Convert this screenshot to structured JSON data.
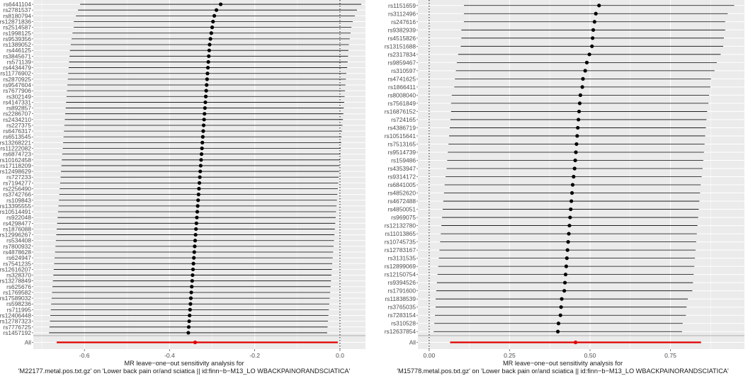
{
  "chart_data": [
    {
      "type": "forest",
      "subtitle_line1": "MR leave−one−out sensitivity analysis for",
      "subtitle_line2": "'M22177.metal.pos.txt.gz' on 'Lower back pain or/and sciatica || id:finn−b−M13_LO WBACKPAINORANDSCIATICA'",
      "xlim": [
        -0.72,
        0.06
      ],
      "xticks": [
        -0.6,
        -0.4,
        -0.2,
        0.0
      ],
      "xtick_labels": [
        "-0.6",
        "-0.4",
        "-0.2",
        "0.0"
      ],
      "ref_line": 0,
      "colors": {
        "panel_bg": "#ebebeb",
        "grid": "#ffffff",
        "point": "#000000",
        "all": "#e00000"
      },
      "all": {
        "label": "All",
        "b": -0.34,
        "lo": -0.665,
        "hi": -0.005
      },
      "snps": [
        {
          "label": "rs6441104",
          "b": -0.28,
          "lo": -0.61,
          "hi": 0.05
        },
        {
          "label": "rs2781537",
          "b": -0.29,
          "lo": -0.615,
          "hi": 0.04
        },
        {
          "label": "rs8180794",
          "b": -0.295,
          "lo": -0.62,
          "hi": 0.035
        },
        {
          "label": "rs12871836",
          "b": -0.298,
          "lo": -0.625,
          "hi": 0.03
        },
        {
          "label": "rs2514587",
          "b": -0.3,
          "lo": -0.625,
          "hi": 0.027
        },
        {
          "label": "rs1998125",
          "b": -0.302,
          "lo": -0.628,
          "hi": 0.025
        },
        {
          "label": "rs9539356",
          "b": -0.304,
          "lo": -0.63,
          "hi": 0.023
        },
        {
          "label": "rs1389052",
          "b": -0.306,
          "lo": -0.632,
          "hi": 0.021
        },
        {
          "label": "rs446125",
          "b": -0.307,
          "lo": -0.634,
          "hi": 0.02
        },
        {
          "label": "rs3845671",
          "b": -0.308,
          "lo": -0.635,
          "hi": 0.019
        },
        {
          "label": "rs571139",
          "b": -0.309,
          "lo": -0.636,
          "hi": 0.018
        },
        {
          "label": "rs4434479",
          "b": -0.31,
          "lo": -0.637,
          "hi": 0.017
        },
        {
          "label": "rs11776902",
          "b": -0.311,
          "lo": -0.638,
          "hi": 0.015
        },
        {
          "label": "rs2870925",
          "b": -0.312,
          "lo": -0.639,
          "hi": 0.014
        },
        {
          "label": "rs9547604",
          "b": -0.313,
          "lo": -0.64,
          "hi": 0.013
        },
        {
          "label": "rs7677906",
          "b": -0.314,
          "lo": -0.641,
          "hi": 0.012
        },
        {
          "label": "rs302149",
          "b": -0.315,
          "lo": -0.642,
          "hi": 0.011
        },
        {
          "label": "rs4147331",
          "b": -0.316,
          "lo": -0.643,
          "hi": 0.01
        },
        {
          "label": "rs892857",
          "b": -0.317,
          "lo": -0.644,
          "hi": 0.009
        },
        {
          "label": "rs2286707",
          "b": -0.318,
          "lo": -0.645,
          "hi": 0.008
        },
        {
          "label": "rs2434210",
          "b": -0.319,
          "lo": -0.646,
          "hi": 0.007
        },
        {
          "label": "rs227375",
          "b": -0.32,
          "lo": -0.647,
          "hi": 0.006
        },
        {
          "label": "rs6476317",
          "b": -0.321,
          "lo": -0.648,
          "hi": 0.005
        },
        {
          "label": "rs6513545",
          "b": -0.322,
          "lo": -0.649,
          "hi": 0.004
        },
        {
          "label": "rs13268221",
          "b": -0.323,
          "lo": -0.65,
          "hi": 0.003
        },
        {
          "label": "rs11222082",
          "b": -0.324,
          "lo": -0.651,
          "hi": 0.002
        },
        {
          "label": "rs6874723",
          "b": -0.325,
          "lo": -0.652,
          "hi": 0.001
        },
        {
          "label": "rs10162458",
          "b": -0.326,
          "lo": -0.653,
          "hi": 0.0
        },
        {
          "label": "rs17118209",
          "b": -0.327,
          "lo": -0.654,
          "hi": -0.001
        },
        {
          "label": "rs12498629",
          "b": -0.328,
          "lo": -0.655,
          "hi": -0.002
        },
        {
          "label": "rs727233",
          "b": -0.329,
          "lo": -0.656,
          "hi": -0.003
        },
        {
          "label": "rs7194277",
          "b": -0.33,
          "lo": -0.657,
          "hi": -0.004
        },
        {
          "label": "rs2256490",
          "b": -0.331,
          "lo": -0.658,
          "hi": -0.005
        },
        {
          "label": "rs3742766",
          "b": -0.332,
          "lo": -0.659,
          "hi": -0.006
        },
        {
          "label": "rs109843",
          "b": -0.333,
          "lo": -0.66,
          "hi": -0.007
        },
        {
          "label": "rs13395555",
          "b": -0.334,
          "lo": -0.661,
          "hi": -0.008
        },
        {
          "label": "rs10514491",
          "b": -0.335,
          "lo": -0.662,
          "hi": -0.009
        },
        {
          "label": "rs922048",
          "b": -0.336,
          "lo": -0.663,
          "hi": -0.01
        },
        {
          "label": "rs4298477",
          "b": -0.337,
          "lo": -0.664,
          "hi": -0.011
        },
        {
          "label": "rs1876088",
          "b": -0.338,
          "lo": -0.665,
          "hi": -0.012
        },
        {
          "label": "rs12996267",
          "b": -0.339,
          "lo": -0.666,
          "hi": -0.013
        },
        {
          "label": "rs534408",
          "b": -0.34,
          "lo": -0.667,
          "hi": -0.014
        },
        {
          "label": "rs7800932",
          "b": -0.341,
          "lo": -0.668,
          "hi": -0.015
        },
        {
          "label": "rs4878628",
          "b": -0.342,
          "lo": -0.669,
          "hi": -0.016
        },
        {
          "label": "rs624947",
          "b": -0.343,
          "lo": -0.67,
          "hi": -0.017
        },
        {
          "label": "rs7541235",
          "b": -0.344,
          "lo": -0.671,
          "hi": -0.018
        },
        {
          "label": "rs12616207",
          "b": -0.345,
          "lo": -0.672,
          "hi": -0.019
        },
        {
          "label": "rs328370",
          "b": -0.346,
          "lo": -0.673,
          "hi": -0.02
        },
        {
          "label": "rs13278849",
          "b": -0.347,
          "lo": -0.674,
          "hi": -0.021
        },
        {
          "label": "rs625676",
          "b": -0.348,
          "lo": -0.675,
          "hi": -0.022
        },
        {
          "label": "rs1769582",
          "b": -0.349,
          "lo": -0.676,
          "hi": -0.023
        },
        {
          "label": "rs17589032",
          "b": -0.35,
          "lo": -0.677,
          "hi": -0.024
        },
        {
          "label": "rs598236",
          "b": -0.351,
          "lo": -0.678,
          "hi": -0.025
        },
        {
          "label": "rs711995",
          "b": -0.352,
          "lo": -0.679,
          "hi": -0.026
        },
        {
          "label": "rs12406448",
          "b": -0.353,
          "lo": -0.68,
          "hi": -0.027
        },
        {
          "label": "rs12787323",
          "b": -0.354,
          "lo": -0.681,
          "hi": -0.028
        },
        {
          "label": "rs7776725",
          "b": -0.355,
          "lo": -0.682,
          "hi": -0.029
        },
        {
          "label": "rs1457192",
          "b": -0.356,
          "lo": -0.683,
          "hi": -0.03
        }
      ]
    },
    {
      "type": "forest",
      "subtitle_line1": "MR leave−one−out sensitivity analysis for",
      "subtitle_line2": "'M15778.metal.pos.txt.gz' on 'Lower back pain or/and sciatica || id:finn−b−M13_LO WBACKPAINORANDSCIATICA'",
      "xlim": [
        -0.035,
        0.98
      ],
      "xticks": [
        0.0,
        0.25,
        0.5,
        0.75
      ],
      "xtick_labels": [
        "0.00",
        "0.25",
        "0.50",
        "0.75"
      ],
      "ref_line": 0,
      "colors": {
        "panel_bg": "#ebebeb",
        "grid": "#ffffff",
        "point": "#000000",
        "all": "#e00000"
      },
      "all": {
        "label": "All",
        "b": 0.455,
        "lo": 0.065,
        "hi": 0.845
      },
      "snps": [
        {
          "label": "rs1151659",
          "b": 0.528,
          "lo": 0.108,
          "hi": 0.948
        },
        {
          "label": "rs3112496",
          "b": 0.518,
          "lo": 0.108,
          "hi": 0.928
        },
        {
          "label": "rs247616",
          "b": 0.514,
          "lo": 0.108,
          "hi": 0.92
        },
        {
          "label": "rs9382939",
          "b": 0.51,
          "lo": 0.1,
          "hi": 0.92
        },
        {
          "label": "rs4515826",
          "b": 0.508,
          "lo": 0.1,
          "hi": 0.916
        },
        {
          "label": "rs13151688",
          "b": 0.506,
          "lo": 0.098,
          "hi": 0.914
        },
        {
          "label": "rs2317834",
          "b": 0.498,
          "lo": 0.09,
          "hi": 0.906
        },
        {
          "label": "rs9859467",
          "b": 0.49,
          "lo": 0.086,
          "hi": 0.894
        },
        {
          "label": "rs310597",
          "b": 0.485,
          "lo": 0.083,
          "hi": 0.887
        },
        {
          "label": "rs4741625",
          "b": 0.478,
          "lo": 0.08,
          "hi": 0.876
        },
        {
          "label": "rs1866411",
          "b": 0.476,
          "lo": 0.078,
          "hi": 0.874
        },
        {
          "label": "rs8008040",
          "b": 0.47,
          "lo": 0.07,
          "hi": 0.87
        },
        {
          "label": "rs7561849",
          "b": 0.468,
          "lo": 0.068,
          "hi": 0.868
        },
        {
          "label": "rs16876152",
          "b": 0.466,
          "lo": 0.068,
          "hi": 0.864
        },
        {
          "label": "rs724165",
          "b": 0.464,
          "lo": 0.066,
          "hi": 0.862
        },
        {
          "label": "rs4386719",
          "b": 0.462,
          "lo": 0.064,
          "hi": 0.86
        },
        {
          "label": "rs10515641",
          "b": 0.46,
          "lo": 0.062,
          "hi": 0.858
        },
        {
          "label": "rs7513165",
          "b": 0.458,
          "lo": 0.06,
          "hi": 0.856
        },
        {
          "label": "rs9514739",
          "b": 0.456,
          "lo": 0.058,
          "hi": 0.854
        },
        {
          "label": "rs159486",
          "b": 0.454,
          "lo": 0.056,
          "hi": 0.852
        },
        {
          "label": "rs4353947",
          "b": 0.452,
          "lo": 0.054,
          "hi": 0.85
        },
        {
          "label": "rs9314172",
          "b": 0.449,
          "lo": 0.051,
          "hi": 0.847
        },
        {
          "label": "rs6841005",
          "b": 0.446,
          "lo": 0.048,
          "hi": 0.844
        },
        {
          "label": "rs4852620",
          "b": 0.444,
          "lo": 0.046,
          "hi": 0.842
        },
        {
          "label": "rs4672488",
          "b": 0.442,
          "lo": 0.044,
          "hi": 0.84
        },
        {
          "label": "rs4850051",
          "b": 0.44,
          "lo": 0.042,
          "hi": 0.838
        },
        {
          "label": "rs969075",
          "b": 0.438,
          "lo": 0.04,
          "hi": 0.836
        },
        {
          "label": "rs12132780",
          "b": 0.436,
          "lo": 0.038,
          "hi": 0.834
        },
        {
          "label": "rs11013865",
          "b": 0.434,
          "lo": 0.036,
          "hi": 0.832
        },
        {
          "label": "rs10745735",
          "b": 0.432,
          "lo": 0.034,
          "hi": 0.83
        },
        {
          "label": "rs12783167",
          "b": 0.43,
          "lo": 0.032,
          "hi": 0.828
        },
        {
          "label": "rs3131535",
          "b": 0.428,
          "lo": 0.03,
          "hi": 0.826
        },
        {
          "label": "rs12899069",
          "b": 0.426,
          "lo": 0.028,
          "hi": 0.824
        },
        {
          "label": "rs12150754",
          "b": 0.424,
          "lo": 0.026,
          "hi": 0.822
        },
        {
          "label": "rs9394526",
          "b": 0.422,
          "lo": 0.024,
          "hi": 0.82
        },
        {
          "label": "rs1791600",
          "b": 0.42,
          "lo": 0.022,
          "hi": 0.818
        },
        {
          "label": "rs11838539",
          "b": 0.412,
          "lo": 0.02,
          "hi": 0.804
        },
        {
          "label": "rs3765035",
          "b": 0.41,
          "lo": 0.02,
          "hi": 0.8
        },
        {
          "label": "rs7283154",
          "b": 0.408,
          "lo": 0.018,
          "hi": 0.798
        },
        {
          "label": "rs310528",
          "b": 0.402,
          "lo": 0.016,
          "hi": 0.788
        },
        {
          "label": "rs12637854",
          "b": 0.4,
          "lo": 0.014,
          "hi": 0.786
        }
      ]
    }
  ]
}
